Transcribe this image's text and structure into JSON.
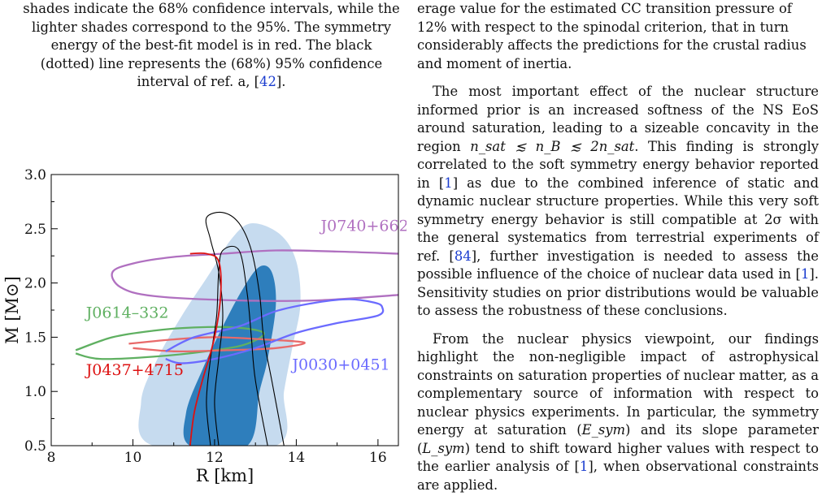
{
  "caption": {
    "line1": "shades indicate the 68% confidence intervals, while the",
    "line2": "lighter shades correspond to the 95%. The symmetry",
    "line3": "energy of the best-fit model is in red. The black",
    "line4": "(dotted) line represents the (68%) 95% confidence",
    "line5_pre": "interval of ref. a, [",
    "line5_cite": "42",
    "line5_post": "]."
  },
  "figure": {
    "chart_data": {
      "type": "area",
      "xlabel": "R [km]",
      "ylabel": "M [M⊙]",
      "xlim": [
        8,
        16.5
      ],
      "ylim": [
        0.5,
        3.0
      ],
      "xticks": [
        "8",
        "10",
        "12",
        "14",
        "16"
      ],
      "yticks": [
        "0.5",
        "1.0",
        "1.5",
        "2.0",
        "2.5",
        "3.0"
      ],
      "grid": false,
      "annotations": [
        "J0740+6620",
        "J0614–332",
        "J0437+4715",
        "J0030+0451"
      ],
      "series": [
        {
          "name": "J0740+6620",
          "color": "#b070c0",
          "points": [
            [
              16.5,
              2.27
            ],
            [
              15,
              2.29
            ],
            [
              13.5,
              2.3
            ],
            [
              12.2,
              2.27
            ],
            [
              11,
              2.24
            ],
            [
              10,
              2.18
            ],
            [
              9.5,
              2.1
            ],
            [
              9.7,
              1.96
            ],
            [
              10.5,
              1.88
            ],
            [
              12.5,
              1.84
            ],
            [
              14.5,
              1.84
            ],
            [
              16.5,
              1.89
            ]
          ]
        },
        {
          "name": "J0614–332",
          "color": "#5fb061",
          "points": [
            [
              8.6,
              1.38
            ],
            [
              9.5,
              1.5
            ],
            [
              10.5,
              1.56
            ],
            [
              11.5,
              1.59
            ],
            [
              12.5,
              1.59
            ],
            [
              13.2,
              1.54
            ],
            [
              12.8,
              1.44
            ],
            [
              12,
              1.38
            ],
            [
              10.5,
              1.32
            ],
            [
              9.2,
              1.3
            ],
            [
              8.6,
              1.35
            ]
          ]
        },
        {
          "name": "J0437+4715",
          "color": "#e86a6a",
          "points": [
            [
              9.9,
              1.44
            ],
            [
              11,
              1.48
            ],
            [
              12,
              1.5
            ],
            [
              13.2,
              1.48
            ],
            [
              14.2,
              1.45
            ],
            [
              13.5,
              1.4
            ],
            [
              12.3,
              1.38
            ],
            [
              11,
              1.37
            ],
            [
              10,
              1.4
            ]
          ]
        },
        {
          "name": "J0030+0451",
          "color": "#6b6bff",
          "points": [
            [
              10.8,
              1.37
            ],
            [
              11.5,
              1.5
            ],
            [
              12.6,
              1.6
            ],
            [
              13.5,
              1.74
            ],
            [
              14.5,
              1.82
            ],
            [
              15.3,
              1.85
            ],
            [
              15.9,
              1.82
            ],
            [
              16.1,
              1.78
            ],
            [
              16.0,
              1.7
            ],
            [
              15.0,
              1.63
            ],
            [
              14.0,
              1.54
            ],
            [
              13.0,
              1.4
            ],
            [
              12.0,
              1.3
            ],
            [
              11.2,
              1.26
            ],
            [
              10.8,
              1.3
            ]
          ]
        }
      ],
      "bands": [
        {
          "level": "95%",
          "color": "#c6dbef",
          "points": [
            [
              10.5,
              0.5
            ],
            [
              10.2,
              0.9
            ],
            [
              10.6,
              1.3
            ],
            [
              11.2,
              1.7
            ],
            [
              11.9,
              2.1
            ],
            [
              12.4,
              2.4
            ],
            [
              12.9,
              2.55
            ],
            [
              13.6,
              2.45
            ],
            [
              14.0,
              2.2
            ],
            [
              14.1,
              1.8
            ],
            [
              13.9,
              1.4
            ],
            [
              13.7,
              1.0
            ],
            [
              13.5,
              0.5
            ]
          ]
        },
        {
          "level": "68%",
          "color": "#2e7ebc",
          "points": [
            [
              11.4,
              0.5
            ],
            [
              11.3,
              0.8
            ],
            [
              11.7,
              1.2
            ],
            [
              12.2,
              1.6
            ],
            [
              12.7,
              1.95
            ],
            [
              13.1,
              2.15
            ],
            [
              13.4,
              2.1
            ],
            [
              13.5,
              1.8
            ],
            [
              13.3,
              1.3
            ],
            [
              13.1,
              1.0
            ],
            [
              12.8,
              0.5
            ]
          ]
        }
      ],
      "best_fit": {
        "color": "#dd1111",
        "points": [
          [
            11.4,
            0.5
          ],
          [
            11.5,
            0.8
          ],
          [
            11.7,
            1.1
          ],
          [
            12.0,
            1.5
          ],
          [
            12.15,
            1.9
          ],
          [
            12.1,
            2.2
          ],
          [
            11.8,
            2.27
          ],
          [
            11.4,
            2.27
          ]
        ]
      },
      "reference_contours": [
        {
          "level": "95%",
          "points": [
            [
              12.1,
              0.5
            ],
            [
              12.0,
              0.9
            ],
            [
              12.1,
              1.3
            ],
            [
              12.2,
              1.7
            ],
            [
              12.1,
              2.1
            ],
            [
              11.9,
              2.4
            ],
            [
              11.8,
              2.6
            ],
            [
              12.2,
              2.65
            ],
            [
              12.6,
              2.55
            ],
            [
              12.9,
              2.3
            ],
            [
              13.1,
              1.9
            ],
            [
              13.2,
              1.5
            ],
            [
              13.4,
              1.1
            ],
            [
              13.7,
              0.5
            ]
          ]
        },
        {
          "level": "68%",
          "points": [
            [
              11.9,
              0.5
            ],
            [
              11.8,
              0.9
            ],
            [
              11.9,
              1.3
            ],
            [
              12.05,
              1.7
            ],
            [
              12.1,
              2.1
            ],
            [
              12.2,
              2.3
            ],
            [
              12.6,
              2.3
            ],
            [
              12.8,
              1.9
            ],
            [
              12.9,
              1.5
            ],
            [
              13.0,
              1.1
            ],
            [
              13.3,
              0.5
            ]
          ]
        }
      ]
    }
  },
  "column": {
    "p1_line1": "erage value for the estimated CC transition pressure of",
    "p1_line2": "12% with respect to the spinodal criterion, that in turn",
    "p1_line3": "considerably affects the predictions for the crustal radius",
    "p1_line4": "and moment of inertia.",
    "p2_a": "The most important effect of the nuclear structure informed prior is an increased softness of the NS EoS around saturation, leading to a sizeable concavity in the region ",
    "p2_math": "n_sat ≲ n_B ≲ 2n_sat",
    "p2_b": ". This finding is strongly correlated to the soft symmetry energy behavior reported in [",
    "p2_cite1": "1",
    "p2_c": "] as due to the combined inference of static and dynamic nuclear structure properties. While this very soft symmetry energy behavior is still compatible at 2σ with the general systematics from terrestrial experiments of ref. [",
    "p2_cite2": "84",
    "p2_d": "], further investigation is needed to assess the possible influence of the choice of nuclear data used in [",
    "p2_cite3": "1",
    "p2_e": "]. Sensitivity studies on prior distributions would be valuable to assess the robustness of these conclusions.",
    "p3_a": "From the nuclear physics viewpoint, our findings highlight the non-negligible impact of astrophysical constraints on saturation properties of nuclear matter, as a complementary source of information with respect to nuclear physics experiments. In particular, the symmetry energy at saturation (",
    "p3_esym": "E_sym",
    "p3_b": ") and its slope parameter (",
    "p3_lsym": "L_sym",
    "p3_c": ") tend to shift toward higher values with respect to the earlier analysis of [",
    "p3_cite": "1",
    "p3_d": "], when observational constraints are applied."
  }
}
